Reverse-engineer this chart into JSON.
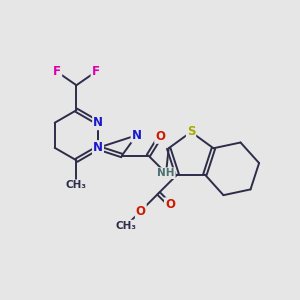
{
  "background_color": "#e6e6e6",
  "bond_color": "#2d2d4a",
  "bond_width": 1.4,
  "dbo": 0.06,
  "atom_colors": {
    "N": "#1a1acc",
    "O": "#cc1a00",
    "S": "#aaaa00",
    "F": "#dd00aa",
    "C": "#2d2d4a",
    "H": "#4a7070",
    "NH": "#4a7070"
  },
  "font_size": 8.5,
  "fig_width": 3.0,
  "fig_height": 3.0,
  "dpi": 100
}
